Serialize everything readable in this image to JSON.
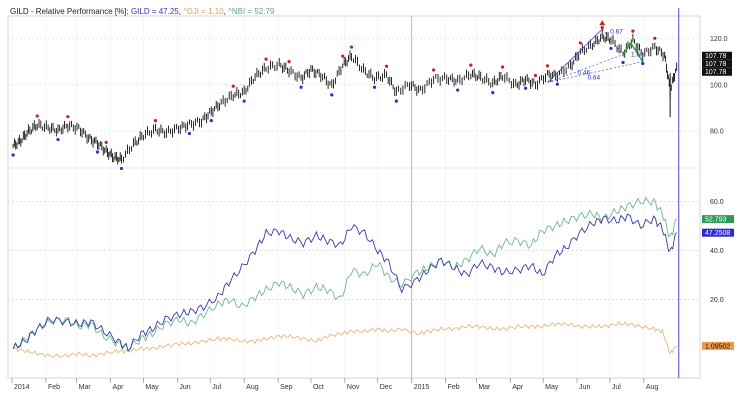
{
  "chart_data": {
    "type": "line",
    "title_parts": [
      {
        "text": "GILD - Relative Performance [%]: ",
        "color": "#222222"
      },
      {
        "text": "GILD = 47.25",
        "color": "#3333aa"
      },
      {
        "text": ", ",
        "color": "#222222"
      },
      {
        "text": "^DJI = 1.10",
        "color": "#d9a55a"
      },
      {
        "text": ", ",
        "color": "#222222"
      },
      {
        "text": "^NBI = 52.79",
        "color": "#5aa886"
      }
    ],
    "x_ticks": [
      "2014",
      "Feb",
      "Mar",
      "Apr",
      "May",
      "Jun",
      "Jul",
      "Aug",
      "Sep",
      "Oct",
      "Nov",
      "Dec",
      "2015",
      "Feb",
      "Mar",
      "Apr",
      "May",
      "Jun",
      "Jul",
      "Aug"
    ],
    "upper": {
      "y_ticks": [
        80,
        100,
        120
      ],
      "ylim": [
        64,
        128
      ],
      "dates": [
        "2014-01-02",
        "2014-01-09",
        "2014-01-16",
        "2014-01-24",
        "2014-02-03",
        "2014-02-12",
        "2014-02-21",
        "2014-03-03",
        "2014-03-12",
        "2014-03-20",
        "2014-03-28",
        "2014-04-04",
        "2014-04-11",
        "2014-04-22",
        "2014-05-01",
        "2014-05-12",
        "2014-05-22",
        "2014-06-02",
        "2014-06-12",
        "2014-06-23",
        "2014-07-02",
        "2014-07-11",
        "2014-07-22",
        "2014-08-01",
        "2014-08-11",
        "2014-08-21",
        "2014-09-02",
        "2014-09-11",
        "2014-09-22",
        "2014-10-01",
        "2014-10-10",
        "2014-10-20",
        "2014-10-30",
        "2014-11-07",
        "2014-11-18",
        "2014-11-28",
        "2014-12-09",
        "2014-12-18",
        "2014-12-30",
        "2015-01-09",
        "2015-01-21",
        "2015-02-02",
        "2015-02-12",
        "2015-02-24",
        "2015-03-05",
        "2015-03-16",
        "2015-03-25",
        "2015-04-06",
        "2015-04-15",
        "2015-04-24",
        "2015-05-05",
        "2015-05-14",
        "2015-05-26",
        "2015-06-04",
        "2015-06-15",
        "2015-06-24",
        "2015-07-02",
        "2015-07-13",
        "2015-07-22",
        "2015-07-31",
        "2015-08-11",
        "2015-08-20",
        "2015-08-25",
        "2015-08-31"
      ],
      "close": [
        73.5,
        75.8,
        79.8,
        82.6,
        81.4,
        80.2,
        82.3,
        81.1,
        76.9,
        74.8,
        71.2,
        68.6,
        67.7,
        74.3,
        78.2,
        80.6,
        79.3,
        81.2,
        82.8,
        84.3,
        88.4,
        92.1,
        95.5,
        96.8,
        103.6,
        107.2,
        108.7,
        106.1,
        102.8,
        106.5,
        104.2,
        99.5,
        108.5,
        112.4,
        106.2,
        102.8,
        104.1,
        96.8,
        100.2,
        97.4,
        102.5,
        102.8,
        101.6,
        104.6,
        103.2,
        100.5,
        103.8,
        99.8,
        102.4,
        100.1,
        104.3,
        104.1,
        108.1,
        114.2,
        117.4,
        120.8,
        119.6,
        113.5,
        119.3,
        113.1,
        116.2,
        112.7,
        97.6,
        107.78
      ],
      "last_value_labels": [
        "107.78",
        "107.78",
        "107.78"
      ],
      "annotations": [
        "0.67",
        "1.60",
        "0.46",
        "0.64"
      ]
    },
    "lower": {
      "y_ticks": [
        20,
        40,
        60
      ],
      "ylim": [
        -12,
        72
      ],
      "dates": [
        "2014-01-02",
        "2014-01-13",
        "2014-01-24",
        "2014-02-05",
        "2014-02-19",
        "2014-03-03",
        "2014-03-14",
        "2014-03-26",
        "2014-04-08",
        "2014-04-17",
        "2014-04-29",
        "2014-05-09",
        "2014-05-21",
        "2014-06-03",
        "2014-06-13",
        "2014-06-25",
        "2014-07-08",
        "2014-07-18",
        "2014-07-30",
        "2014-08-11",
        "2014-08-21",
        "2014-09-02",
        "2014-09-12",
        "2014-09-24",
        "2014-10-06",
        "2014-10-16",
        "2014-10-28",
        "2014-11-07",
        "2014-11-19",
        "2014-12-01",
        "2014-12-11",
        "2014-12-23",
        "2015-01-06",
        "2015-01-16",
        "2015-01-28",
        "2015-02-09",
        "2015-02-20",
        "2015-03-04",
        "2015-03-16",
        "2015-03-26",
        "2015-04-08",
        "2015-04-20",
        "2015-04-30",
        "2015-05-12",
        "2015-05-22",
        "2015-06-03",
        "2015-06-15",
        "2015-06-25",
        "2015-07-07",
        "2015-07-17",
        "2015-07-29",
        "2015-08-10",
        "2015-08-18",
        "2015-08-25",
        "2015-08-31"
      ],
      "series": [
        {
          "name": "GILD",
          "color": "#3a3aa8",
          "values": [
            0,
            3,
            8,
            12,
            11,
            10,
            11,
            7,
            3,
            0,
            6,
            8,
            12,
            14,
            15,
            17,
            21,
            27,
            33,
            40,
            47,
            48,
            45,
            43,
            46,
            44,
            42,
            50,
            47,
            40,
            35,
            24,
            28,
            32,
            36,
            33,
            30,
            35,
            33,
            31,
            32,
            34,
            30,
            38,
            41,
            47,
            51,
            53,
            52,
            54,
            50,
            53,
            49,
            39,
            47.25
          ]
        },
        {
          "name": "^NBI",
          "color": "#6ab892",
          "values": [
            0,
            4,
            8,
            11,
            12,
            9,
            10,
            5,
            2,
            0,
            4,
            6,
            10,
            12,
            10,
            14,
            18,
            20,
            17,
            21,
            24,
            27,
            25,
            22,
            25,
            24,
            20,
            32,
            30,
            35,
            29,
            26,
            31,
            33,
            36,
            33,
            36,
            41,
            38,
            43,
            44,
            42,
            48,
            50,
            52,
            54,
            55,
            53,
            56,
            58,
            60,
            60,
            55,
            45,
            52.79
          ]
        },
        {
          "name": "^DJI",
          "color": "#e2b87a",
          "values": [
            0,
            -1,
            -2,
            -3,
            -3,
            -2,
            -3,
            -2,
            -1,
            -1,
            0,
            0,
            1,
            2,
            2,
            3,
            4,
            4,
            3,
            3,
            4,
            5,
            5,
            4,
            3,
            5,
            6,
            7,
            7,
            8,
            7,
            8,
            6,
            7,
            8,
            8,
            9,
            9,
            8,
            8,
            9,
            9,
            9,
            10,
            10,
            9,
            9,
            9,
            10,
            10,
            9,
            8,
            7,
            -2,
            1.1
          ]
        }
      ],
      "last_value_labels": [
        "52.793",
        "47.2508",
        "1.09502"
      ]
    }
  }
}
